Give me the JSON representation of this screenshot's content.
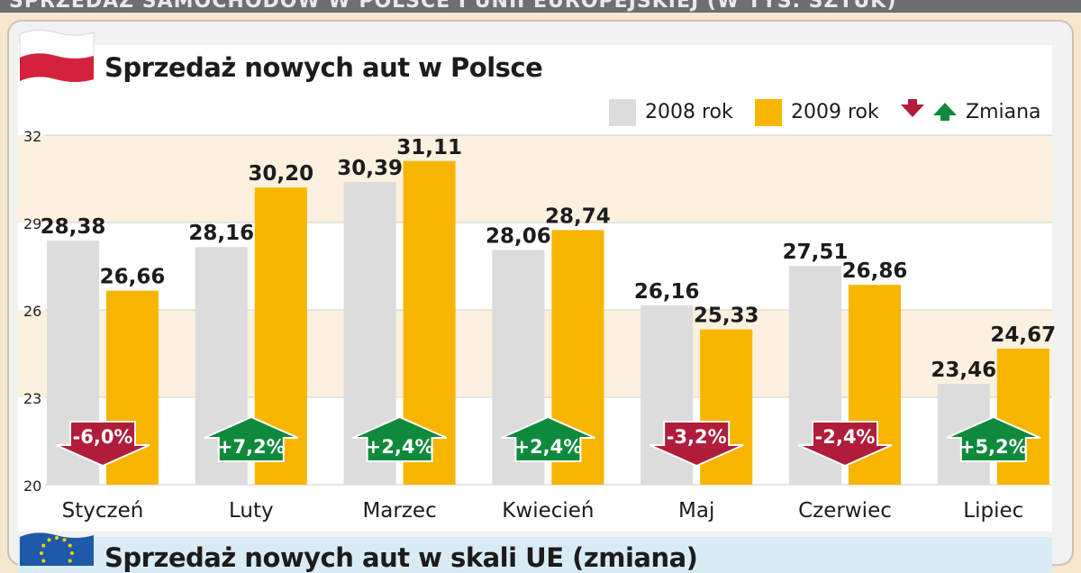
{
  "header": {
    "banner_text": "SPRZEDAŻ SAMOCHODÓW W POLSCE I UNII EUROPEJSKIEJ (W TYS. SZTUK)"
  },
  "chart_data": {
    "type": "bar",
    "title": "Sprzedaż nowych aut w Polsce",
    "categories": [
      "Styczeń",
      "Luty",
      "Marzec",
      "Kwiecień",
      "Maj",
      "Czerwiec",
      "Lipiec"
    ],
    "series": [
      {
        "name": "2008 rok",
        "values": [
          28.38,
          28.16,
          30.39,
          28.06,
          26.16,
          27.51,
          23.46
        ],
        "labels": [
          "28,38",
          "28,16",
          "30,39",
          "28,06",
          "26,16",
          "27,51",
          "23,46"
        ],
        "color": "#dcdcdc"
      },
      {
        "name": "2009 rok",
        "values": [
          26.66,
          30.2,
          31.11,
          28.74,
          25.33,
          26.86,
          24.67
        ],
        "labels": [
          "26,66",
          "30,20",
          "31,11",
          "28,74",
          "25,33",
          "26,86",
          "24,67"
        ],
        "color": "#f7b500"
      }
    ],
    "change": {
      "name": "Zmiana",
      "values": [
        -6.0,
        7.2,
        2.4,
        2.4,
        -3.2,
        -2.4,
        5.2
      ],
      "labels": [
        "-6,0%",
        "+7,2%",
        "+2,4%",
        "+2,4%",
        "-3,2%",
        "-2,4%",
        "+5,2%"
      ],
      "up_color": "#0f8a3c",
      "down_color": "#b01c3a"
    },
    "ylim": [
      20,
      32
    ],
    "yticks": [
      "20",
      "23",
      "26",
      "29",
      "32"
    ],
    "grid": true,
    "legend": "top-right"
  },
  "eu_section": {
    "title": "Sprzedaż nowych aut w skali UE (zmiana)"
  },
  "colors": {
    "flag_white": "#ffffff",
    "flag_red": "#d4213d",
    "eu_blue": "#1e5aa8",
    "eu_star": "#ffd200"
  }
}
